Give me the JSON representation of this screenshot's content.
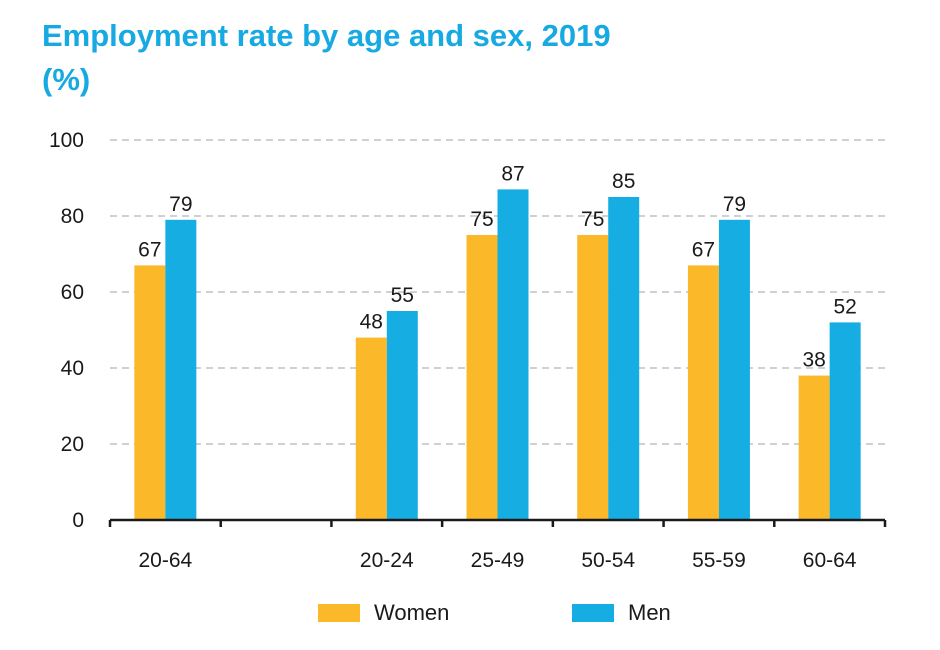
{
  "title": {
    "line1": "Employment rate by age and sex, 2019",
    "line2": "(%)"
  },
  "colors": {
    "women": "#fbb829",
    "men": "#16aee2",
    "title": "#17a9e1",
    "grid": "#b3b3b3",
    "axis": "#1a1a1a"
  },
  "chart_data": {
    "type": "bar",
    "title": "Employment rate by age and sex, 2019",
    "subtitle": "(%)",
    "categories": [
      "20-64",
      "",
      "20-24",
      "25-49",
      "50-54",
      "55-59",
      "60-64"
    ],
    "series": [
      {
        "name": "Women",
        "values": [
          67,
          null,
          48,
          75,
          75,
          67,
          38
        ],
        "color": "#fbb829"
      },
      {
        "name": "Men",
        "values": [
          79,
          null,
          55,
          87,
          85,
          79,
          52
        ],
        "color": "#16aee2"
      }
    ],
    "ylim": [
      0,
      100
    ],
    "yticks": [
      0,
      20,
      40,
      60,
      80,
      100
    ],
    "grid": "dashed horizontal",
    "legend": "bottom-center",
    "xlabel": "",
    "ylabel": ""
  }
}
